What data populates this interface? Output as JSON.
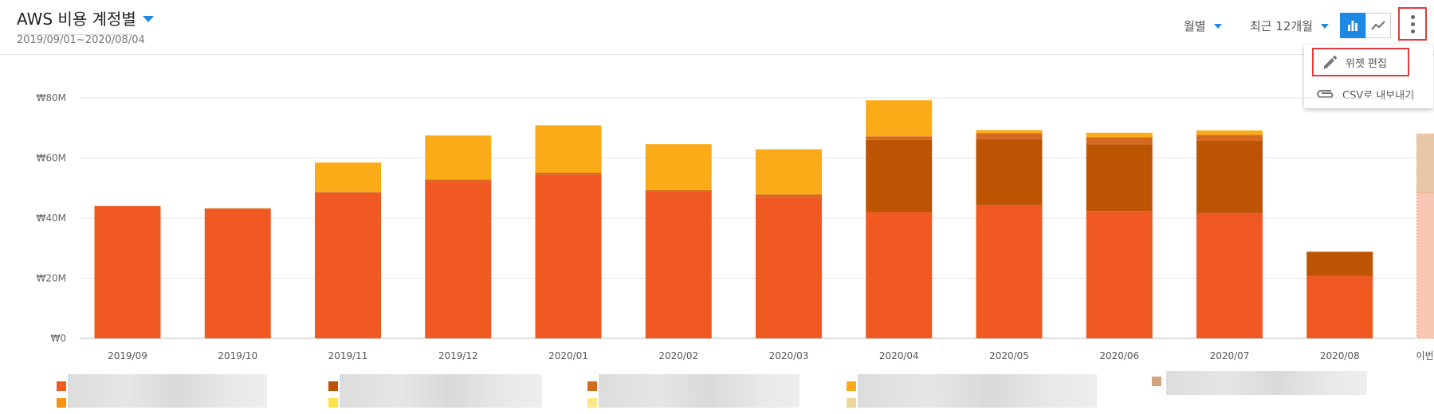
{
  "header": {
    "title": "AWS 비용 계정별",
    "date_range": "2019/09/01~2020/08/04",
    "period_select": "월별",
    "range_select": "최근 12개월",
    "view_mode": "bar"
  },
  "menu": {
    "items": [
      {
        "label": "위젯 편집",
        "icon": "pencil-icon",
        "highlighted": true
      },
      {
        "label": "CSV로 내보내기",
        "icon": "paperclip-icon",
        "highlighted": false
      }
    ]
  },
  "colors": {
    "accent": "#1e88e5",
    "highlight": "#e53935",
    "series": [
      "#f05a22",
      "#bd5404",
      "#d46a1f",
      "#fbab18",
      "#f49515",
      "#fde04a",
      "#fde68a",
      "#eed79b",
      "#d2a57a"
    ],
    "forecast_lower": "#f8c7b3",
    "forecast_upper": "#e8c7a8"
  },
  "chart_data": {
    "type": "bar",
    "stacked": true,
    "categories": [
      "2019/09",
      "2019/10",
      "2019/11",
      "2019/12",
      "2020/01",
      "2020/02",
      "2020/03",
      "2020/04",
      "2020/05",
      "2020/06",
      "2020/07",
      "2020/08",
      "이번달 예상 비용"
    ],
    "y_ticks": [
      "₩0",
      "₩20M",
      "₩40M",
      "₩60M",
      "₩80M"
    ],
    "ylim": [
      0,
      80
    ],
    "grid": true,
    "series": [
      {
        "values": [
          44,
          43,
          48.5,
          52.3,
          54.5,
          49,
          47,
          42,
          44.3,
          42.3,
          41.7,
          20.7,
          48.5
        ]
      },
      {
        "values": [
          0,
          0,
          0,
          0,
          0,
          0,
          0,
          24,
          22,
          22.3,
          24,
          8,
          0
        ]
      },
      {
        "values": [
          0,
          0.3,
          0.2,
          0.6,
          0.6,
          0.3,
          0.9,
          1.2,
          2,
          2.3,
          2,
          0.2,
          0
        ]
      },
      {
        "values": [
          0,
          0,
          9.8,
          14.6,
          15.8,
          15.3,
          15,
          12,
          1,
          1.5,
          1.5,
          0,
          19.5
        ]
      }
    ],
    "legend": [
      {
        "color": "#f05a22"
      },
      {
        "color": "#f49515"
      },
      {
        "color": "#bd5404"
      },
      {
        "color": "#fde04a"
      },
      {
        "color": "#d46a1f"
      },
      {
        "color": "#fde68a"
      },
      {
        "color": "#fbab18"
      },
      {
        "color": "#eed79b"
      },
      {
        "color": "#d2a57a"
      }
    ]
  }
}
